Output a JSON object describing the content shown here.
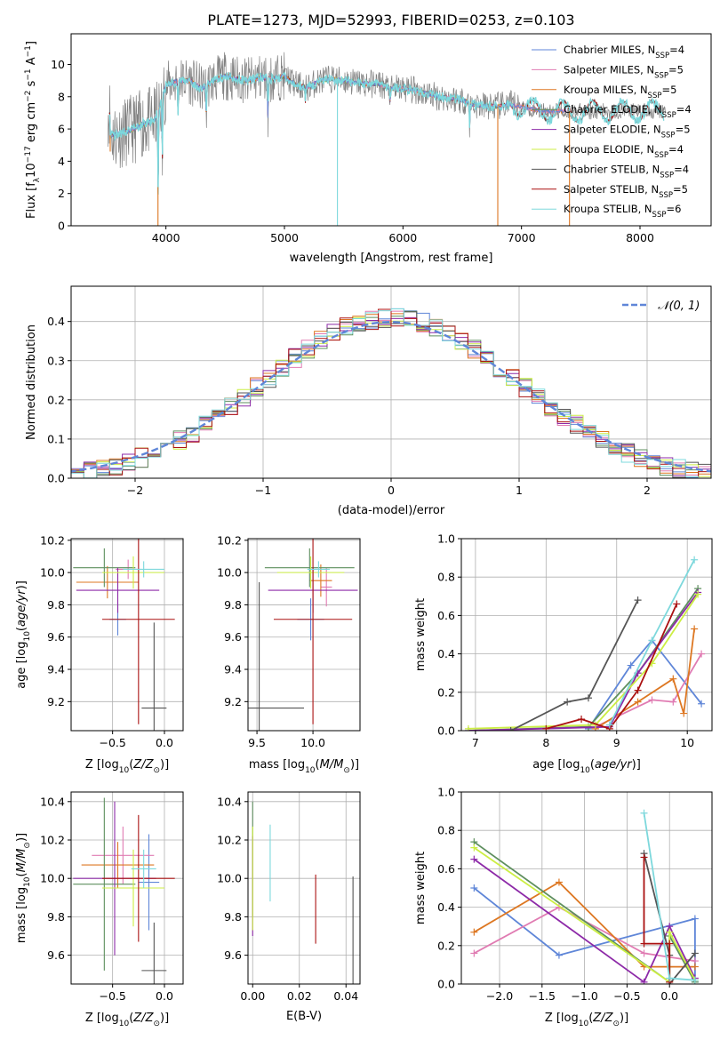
{
  "figure": {
    "title": "PLATE=1273, MJD=52993, FIBERID=0253, z=0.103"
  },
  "colors": {
    "Chabrier MILES": "#5f86d8",
    "Salpeter MILES": "#e07bb2",
    "Kroupa MILES": "#dd7722",
    "Chabrier ELODIE": "#5e8f5e",
    "Salpeter ELODIE": "#8d2aa8",
    "Kroupa ELODIE": "#ccee44",
    "Chabrier STELIB": "#555555",
    "Salpeter STELIB": "#aa1111",
    "Kroupa STELIB": "#7dd8dc"
  },
  "chart_data": [
    {
      "id": "spectrum",
      "type": "line",
      "xlabel": "wavelength [Angstrom, rest frame]",
      "ylabel": "Flux [f_λ10^-17 erg cm^-2 s^-1 A^-1]",
      "xlim": [
        3200,
        8600
      ],
      "ylim": [
        0,
        11.9
      ],
      "xticks": [
        4000,
        5000,
        6000,
        7000,
        8000
      ],
      "yticks": [
        0,
        2,
        4,
        6,
        8,
        10
      ],
      "legend": {
        "position": "top-right",
        "entries": [
          {
            "name": "Chabrier MILES, N",
            "sub": "SSP",
            "suffix": "=4",
            "key": "Chabrier MILES"
          },
          {
            "name": "Salpeter MILES, N",
            "sub": "SSP",
            "suffix": "=5",
            "key": "Salpeter MILES"
          },
          {
            "name": "Kroupa MILES, N",
            "sub": "SSP",
            "suffix": "=5",
            "key": "Kroupa MILES"
          },
          {
            "name": "Chabrier ELODIE, N",
            "sub": "SSP",
            "suffix": "=4",
            "key": "Chabrier ELODIE"
          },
          {
            "name": "Salpeter ELODIE, N",
            "sub": "SSP",
            "suffix": "=5",
            "key": "Salpeter ELODIE"
          },
          {
            "name": "Kroupa ELODIE, N",
            "sub": "SSP",
            "suffix": "=4",
            "key": "Kroupa ELODIE"
          },
          {
            "name": "Chabrier STELIB, N",
            "sub": "SSP",
            "suffix": "=4",
            "key": "Chabrier STELIB"
          },
          {
            "name": "Salpeter STELIB, N",
            "sub": "SSP",
            "suffix": "=5",
            "key": "Salpeter STELIB"
          },
          {
            "name": "Kroupa STELIB, N",
            "sub": "SSP",
            "suffix": "=6",
            "key": "Kroupa STELIB"
          }
        ]
      },
      "data_color": "#808080",
      "continuum": [
        [
          3530,
          5.6
        ],
        [
          3600,
          5.7
        ],
        [
          3700,
          5.9
        ],
        [
          3800,
          6.3
        ],
        [
          3900,
          6.5
        ],
        [
          3950,
          7.4
        ],
        [
          4000,
          8.7
        ],
        [
          4100,
          9.0
        ],
        [
          4200,
          9.0
        ],
        [
          4300,
          8.5
        ],
        [
          4400,
          9.0
        ],
        [
          4500,
          9.3
        ],
        [
          4600,
          9.1
        ],
        [
          4700,
          9.0
        ],
        [
          4800,
          9.2
        ],
        [
          4900,
          9.1
        ],
        [
          5000,
          9.3
        ],
        [
          5100,
          8.7
        ],
        [
          5200,
          8.6
        ],
        [
          5300,
          9.0
        ],
        [
          5400,
          9.1
        ],
        [
          5500,
          9.0
        ],
        [
          5600,
          8.9
        ],
        [
          5700,
          8.8
        ],
        [
          5800,
          8.8
        ],
        [
          5900,
          8.5
        ],
        [
          6000,
          8.5
        ],
        [
          6100,
          8.4
        ],
        [
          6200,
          8.2
        ],
        [
          6300,
          8.0
        ],
        [
          6400,
          7.9
        ],
        [
          6500,
          7.8
        ],
        [
          6600,
          7.5
        ],
        [
          6700,
          7.4
        ],
        [
          6800,
          7.4
        ],
        [
          6900,
          7.5
        ],
        [
          7000,
          7.4
        ],
        [
          7100,
          7.2
        ],
        [
          7200,
          7.1
        ],
        [
          7300,
          7.1
        ],
        [
          7350,
          7.1
        ]
      ],
      "features": [
        {
          "x": 3934,
          "depth": 5.0
        },
        {
          "x": 3969,
          "depth": 4.0
        },
        {
          "x": 4102,
          "depth": 2.0
        },
        {
          "x": 4340,
          "depth": 2.0
        },
        {
          "x": 4861,
          "depth": 2.5
        },
        {
          "x": 5176,
          "depth": 1.0
        },
        {
          "x": 5893,
          "depth": 0.8
        },
        {
          "x": 6563,
          "depth": 1.5
        }
      ],
      "spikes": [
        {
          "x": 3530,
          "y": 4.6,
          "key": "Kroupa MILES"
        },
        {
          "x": 3933,
          "y": 0,
          "key": "Kroupa MILES"
        },
        {
          "x": 5447,
          "y": 0,
          "key": "Kroupa STELIB"
        },
        {
          "x": 6800,
          "y": 0,
          "key": "Kroupa MILES"
        },
        {
          "x": 7405,
          "y": 0,
          "key": "Kroupa MILES"
        }
      ]
    },
    {
      "id": "residuals",
      "type": "histogram",
      "xlabel": "(data-model)/error",
      "ylabel": "Normed distribution",
      "xlim": [
        -2.5,
        2.5
      ],
      "ylim": [
        0,
        0.49
      ],
      "xticks": [
        -2,
        -1,
        0,
        1,
        2
      ],
      "yticks": [
        0,
        0.1,
        0.2,
        0.3,
        0.4
      ],
      "bin_width": 0.1,
      "legend": {
        "position": "top-right",
        "entries": [
          "𝒩(0, 1)"
        ]
      },
      "gaussian": {
        "mean": 0,
        "sigma": 1,
        "color": "#5f86d8"
      }
    },
    {
      "id": "age-vs-Z",
      "type": "errorbar",
      "xlabel": "Z [log10(Z/Z⊙)]",
      "ylabel": "age [log10(age/yr)]",
      "xlim": [
        -0.9,
        0.18
      ],
      "ylim": [
        9.02,
        10.21
      ],
      "xticks": [
        -0.5,
        0.0
      ],
      "yticks": [
        9.2,
        9.4,
        9.6,
        9.8,
        10.0,
        10.2
      ],
      "points": [
        {
          "key": "Chabrier MILES",
          "x": -0.45,
          "y": 9.71,
          "xerr": 0.08,
          "yerr": 0.1
        },
        {
          "key": "Salpeter MILES",
          "x": -0.35,
          "y": 10.02,
          "xerr": 0.12,
          "yerr": 0.06
        },
        {
          "key": "Kroupa MILES",
          "x": -0.55,
          "y": 9.94,
          "xerr": 0.3,
          "yerr": 0.1
        },
        {
          "key": "Chabrier ELODIE",
          "x": -0.58,
          "y": 10.03,
          "xerr": 0.3,
          "yerr": 0.12
        },
        {
          "key": "Salpeter ELODIE",
          "x": -0.45,
          "y": 9.89,
          "xerr": 0.4,
          "yerr": 0.14
        },
        {
          "key": "Kroupa ELODIE",
          "x": -0.3,
          "y": 10.0,
          "xerr": 0.3,
          "yerr": 0.1
        },
        {
          "key": "Chabrier STELIB",
          "x": -0.1,
          "y": 9.16,
          "xerr": 0.12,
          "yerr": 0.53
        },
        {
          "key": "Salpeter STELIB",
          "x": -0.25,
          "y": 9.71,
          "xerr": 0.35,
          "yerr": 0.65
        },
        {
          "key": "Kroupa STELIB",
          "x": -0.2,
          "y": 10.02,
          "xerr": 0.2,
          "yerr": 0.05
        }
      ]
    },
    {
      "id": "age-vs-mass",
      "type": "errorbar",
      "xlabel": "mass [log10(M/M⊙)]",
      "ylabel": "",
      "xlim": [
        9.42,
        10.42
      ],
      "ylim": [
        9.02,
        10.21
      ],
      "xticks": [
        9.5,
        10.0
      ],
      "yticks": [
        9.2,
        9.4,
        9.6,
        9.8,
        10.0,
        10.2
      ],
      "points": [
        {
          "key": "Chabrier MILES",
          "x": 9.98,
          "y": 9.71,
          "xerr": 0.12,
          "yerr": 0.13
        },
        {
          "key": "Salpeter MILES",
          "x": 10.12,
          "y": 9.91,
          "xerr": 0.05,
          "yerr": 0.12
        },
        {
          "key": "Kroupa MILES",
          "x": 10.07,
          "y": 9.95,
          "xerr": 0.1,
          "yerr": 0.1
        },
        {
          "key": "Chabrier ELODIE",
          "x": 9.97,
          "y": 10.03,
          "xerr": 0.4,
          "yerr": 0.12
        },
        {
          "key": "Salpeter ELODIE",
          "x": 10.0,
          "y": 9.89,
          "xerr": 0.4,
          "yerr": 0.14
        },
        {
          "key": "Kroupa ELODIE",
          "x": 9.98,
          "y": 10.0,
          "xerr": 0.3,
          "yerr": 0.1
        },
        {
          "key": "Chabrier STELIB",
          "x": 9.52,
          "y": 9.16,
          "xerr": 0.4,
          "yerr": 0.78
        },
        {
          "key": "Salpeter STELIB",
          "x": 10.0,
          "y": 9.71,
          "xerr": 0.35,
          "yerr": 0.65
        },
        {
          "key": "Kroupa STELIB",
          "x": 10.05,
          "y": 10.02,
          "xerr": 0.1,
          "yerr": 0.05
        }
      ]
    },
    {
      "id": "mass-weight-vs-age",
      "type": "line",
      "xlabel": "age [log10(age/yr)]",
      "ylabel": "mass weight",
      "xlim": [
        6.8,
        10.35
      ],
      "ylim": [
        0,
        1.0
      ],
      "xticks": [
        7,
        8,
        9,
        10
      ],
      "yticks": [
        0.0,
        0.2,
        0.4,
        0.6,
        0.8,
        1.0
      ],
      "series": [
        {
          "key": "Chabrier MILES",
          "points": [
            [
              8.6,
              0.01
            ],
            [
              9.2,
              0.34
            ],
            [
              9.5,
              0.47
            ],
            [
              10.2,
              0.14
            ]
          ]
        },
        {
          "key": "Salpeter MILES",
          "points": [
            [
              8.7,
              0.02
            ],
            [
              9.5,
              0.16
            ],
            [
              9.8,
              0.15
            ],
            [
              10.2,
              0.4
            ]
          ]
        },
        {
          "key": "Kroupa MILES",
          "points": [
            [
              8.7,
              0.01
            ],
            [
              9.3,
              0.15
            ],
            [
              9.8,
              0.27
            ],
            [
              9.95,
              0.09
            ],
            [
              10.1,
              0.53
            ]
          ]
        },
        {
          "key": "Chabrier ELODIE",
          "points": [
            [
              6.9,
              0.0
            ],
            [
              8.6,
              0.02
            ],
            [
              9.3,
              0.3
            ],
            [
              10.15,
              0.74
            ]
          ]
        },
        {
          "key": "Salpeter ELODIE",
          "points": [
            [
              6.9,
              0.0
            ],
            [
              8.9,
              0.02
            ],
            [
              9.3,
              0.3
            ],
            [
              10.15,
              0.72
            ]
          ]
        },
        {
          "key": "Kroupa ELODIE",
          "points": [
            [
              6.9,
              0.01
            ],
            [
              8.7,
              0.03
            ],
            [
              9.5,
              0.35
            ],
            [
              10.15,
              0.71
            ]
          ]
        },
        {
          "key": "Chabrier STELIB",
          "points": [
            [
              7.5,
              0.0
            ],
            [
              8.3,
              0.15
            ],
            [
              8.6,
              0.17
            ],
            [
              9.3,
              0.68
            ]
          ]
        },
        {
          "key": "Salpeter STELIB",
          "points": [
            [
              8.0,
              0.01
            ],
            [
              8.5,
              0.06
            ],
            [
              8.9,
              0.01
            ],
            [
              9.3,
              0.21
            ],
            [
              9.85,
              0.66
            ]
          ]
        },
        {
          "key": "Kroupa STELIB",
          "points": [
            [
              8.9,
              0.03
            ],
            [
              9.5,
              0.47
            ],
            [
              10.1,
              0.89
            ]
          ]
        }
      ]
    },
    {
      "id": "mass-vs-Z",
      "type": "errorbar",
      "xlabel": "Z [log10(Z/Z⊙)]",
      "ylabel": "mass [log10(M/M⊙)]",
      "xlim": [
        -0.9,
        0.18
      ],
      "ylim": [
        9.45,
        10.45
      ],
      "xticks": [
        -0.5,
        0.0
      ],
      "yticks": [
        9.6,
        9.8,
        10.0,
        10.2,
        10.4
      ],
      "points": [
        {
          "key": "Chabrier MILES",
          "x": -0.15,
          "y": 9.98,
          "xerr": 0.1,
          "yerr": 0.25
        },
        {
          "key": "Salpeter MILES",
          "x": -0.4,
          "y": 10.12,
          "xerr": 0.3,
          "yerr": 0.15
        },
        {
          "key": "Kroupa MILES",
          "x": -0.45,
          "y": 10.07,
          "xerr": 0.35,
          "yerr": 0.12
        },
        {
          "key": "Chabrier ELODIE",
          "x": -0.58,
          "y": 9.97,
          "xerr": 0.3,
          "yerr": 0.45
        },
        {
          "key": "Salpeter ELODIE",
          "x": -0.48,
          "y": 10.0,
          "xerr": 0.4,
          "yerr": 0.4
        },
        {
          "key": "Kroupa ELODIE",
          "x": -0.3,
          "y": 9.95,
          "xerr": 0.3,
          "yerr": 0.2
        },
        {
          "key": "Chabrier STELIB",
          "x": -0.1,
          "y": 9.52,
          "xerr": 0.12,
          "yerr": 0.25
        },
        {
          "key": "Salpeter STELIB",
          "x": -0.25,
          "y": 10.0,
          "xerr": 0.35,
          "yerr": 0.33
        },
        {
          "key": "Kroupa STELIB",
          "x": -0.2,
          "y": 10.05,
          "xerr": 0.12,
          "yerr": 0.1
        }
      ]
    },
    {
      "id": "mass-vs-EBV",
      "type": "errorbar",
      "xlabel": "E(B-V)",
      "ylabel": "",
      "xlim": [
        -0.002,
        0.046
      ],
      "ylim": [
        9.45,
        10.45
      ],
      "xticks": [
        0.0,
        0.02,
        0.04
      ],
      "yticks": [
        9.6,
        9.8,
        10.0,
        10.2,
        10.4
      ],
      "points": [
        {
          "key": "Chabrier ELODIE",
          "x": 0.0,
          "y": 10.1,
          "xerr": 0,
          "yerr": 0.3
        },
        {
          "key": "Salpeter ELODIE",
          "x": 0.0,
          "y": 9.96,
          "xerr": 0,
          "yerr": 0.26
        },
        {
          "key": "Kroupa ELODIE",
          "x": 0.0,
          "y": 10.0,
          "xerr": 0,
          "yerr": 0.27
        },
        {
          "key": "Kroupa STELIB",
          "x": 0.0075,
          "y": 10.08,
          "xerr": 0,
          "yerr": 0.2
        },
        {
          "key": "Salpeter STELIB",
          "x": 0.027,
          "y": 9.84,
          "xerr": 0,
          "yerr": 0.18
        },
        {
          "key": "Chabrier STELIB",
          "x": 0.043,
          "y": 9.73,
          "xerr": 0,
          "yerr": 0.28
        }
      ]
    },
    {
      "id": "mass-weight-vs-Z",
      "type": "line",
      "xlabel": "Z [log10(Z/Z⊙)]",
      "ylabel": "mass weight",
      "xlim": [
        -2.45,
        0.5
      ],
      "ylim": [
        0,
        1.0
      ],
      "xticks": [
        -2.0,
        -1.5,
        -1.0,
        -0.5,
        0.0
      ],
      "yticks": [
        0.0,
        0.2,
        0.4,
        0.6,
        0.8,
        1.0
      ],
      "series": [
        {
          "key": "Chabrier MILES",
          "points": [
            [
              -2.3,
              0.5
            ],
            [
              -1.3,
              0.15
            ],
            [
              0.3,
              0.34
            ],
            [
              0.3,
              0.01
            ]
          ]
        },
        {
          "key": "Salpeter MILES",
          "points": [
            [
              -2.3,
              0.16
            ],
            [
              -1.3,
              0.4
            ],
            [
              -0.3,
              0.16
            ],
            [
              0.3,
              0.12
            ]
          ]
        },
        {
          "key": "Kroupa MILES",
          "points": [
            [
              -2.3,
              0.27
            ],
            [
              -1.3,
              0.53
            ],
            [
              -0.3,
              0.09
            ],
            [
              0.3,
              0.09
            ]
          ]
        },
        {
          "key": "Chabrier ELODIE",
          "points": [
            [
              -2.3,
              0.74
            ],
            [
              0.0,
              0.01
            ],
            [
              0.0,
              0.25
            ],
            [
              0.3,
              0.01
            ]
          ]
        },
        {
          "key": "Salpeter ELODIE",
          "points": [
            [
              -2.3,
              0.65
            ],
            [
              -0.3,
              0.01
            ],
            [
              0.0,
              0.3
            ],
            [
              0.3,
              0.03
            ]
          ]
        },
        {
          "key": "Kroupa ELODIE",
          "points": [
            [
              -2.3,
              0.71
            ],
            [
              0.0,
              0.01
            ],
            [
              0.0,
              0.27
            ],
            [
              0.3,
              0.02
            ]
          ]
        },
        {
          "key": "Chabrier STELIB",
          "points": [
            [
              -0.3,
              0.68
            ],
            [
              0.0,
              0.15
            ],
            [
              0.0,
              0.0
            ],
            [
              0.3,
              0.16
            ]
          ]
        },
        {
          "key": "Salpeter STELIB",
          "points": [
            [
              -0.3,
              0.66
            ],
            [
              -0.3,
              0.21
            ],
            [
              0.0,
              0.21
            ],
            [
              0.0,
              0.01
            ]
          ]
        },
        {
          "key": "Kroupa STELIB",
          "points": [
            [
              -0.3,
              0.89
            ],
            [
              0.0,
              0.03
            ],
            [
              0.3,
              0.02
            ]
          ]
        }
      ]
    }
  ]
}
